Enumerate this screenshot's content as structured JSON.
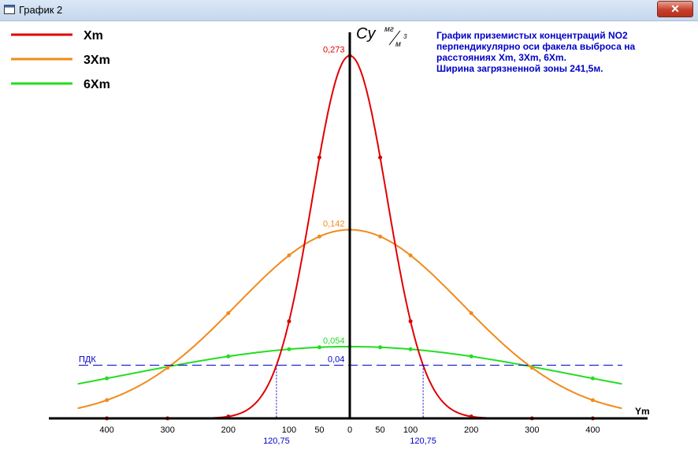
{
  "window": {
    "title": "График 2",
    "close_label": "✕",
    "icon": "window-icon"
  },
  "legend": [
    {
      "label": "Xm",
      "color": "#e00000"
    },
    {
      "label": "3Xm",
      "color": "#f08a1c"
    },
    {
      "label": "6Xm",
      "color": "#22dd22"
    }
  ],
  "info": {
    "lines": [
      "График приземистых концентраций NO2",
      "перпендикулярно оси факела выброса на",
      "расстояниях Xm, 3Xm, 6Xm.",
      "Ширина загрязненной зоны 241,5м."
    ],
    "color": "#0000c8"
  },
  "pdk": {
    "label": "ПДК",
    "value_label": "0,04",
    "value": 0.04,
    "color": "#0000c8"
  },
  "axes": {
    "y_label": "Cy",
    "y_unit_num": "мг",
    "y_unit_den": "м",
    "y_unit_exp": "3",
    "x_label": "Ym"
  },
  "zone_width_labels": [
    "120,75",
    "120,75"
  ],
  "chart_data": {
    "type": "line",
    "x_tick_labels": [
      "400",
      "300",
      "200",
      "100",
      "50",
      "0",
      "50",
      "100",
      "200",
      "300",
      "400"
    ],
    "x_ticks": [
      -400,
      -300,
      -200,
      -100,
      -50,
      0,
      50,
      100,
      200,
      300,
      400
    ],
    "zone_boundaries": [
      -120.75,
      120.75
    ],
    "pdk": 0.04,
    "series": [
      {
        "name": "Xm",
        "color": "#e00000",
        "peak": 0.273,
        "peak_label": "0,273",
        "sigma": 61.6
      },
      {
        "name": "3Xm",
        "color": "#f08a1c",
        "peak": 0.142,
        "peak_label": "0,142",
        "sigma": 185
      },
      {
        "name": "6Xm",
        "color": "#22dd22",
        "peak": 0.054,
        "peak_label": "0,054",
        "sigma": 370
      }
    ],
    "marker_x": [
      -400,
      -300,
      -200,
      -100,
      -50,
      0,
      50,
      100,
      200,
      300,
      400
    ],
    "xlim": [
      -400,
      400
    ],
    "ylim": [
      0,
      0.273
    ]
  }
}
